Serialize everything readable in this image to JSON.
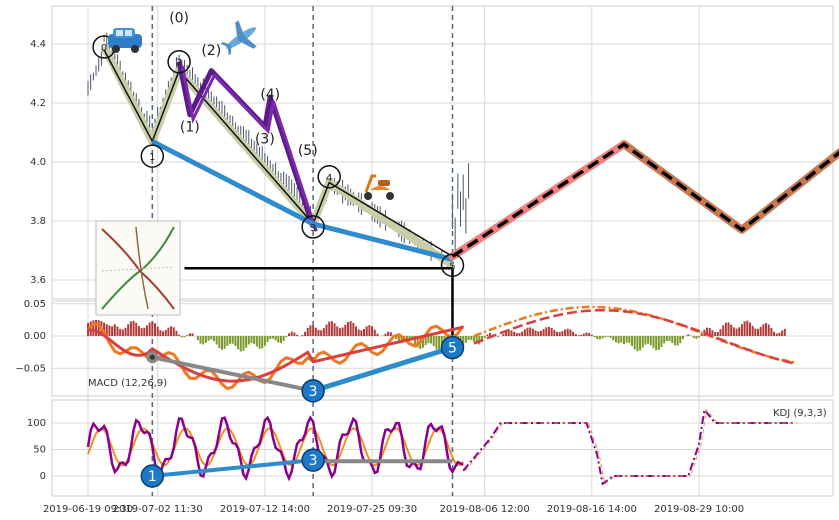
{
  "colors": {
    "candle": "#4a5568",
    "trend_blue": "#2e8bcc",
    "wave_purple": "#5b1a8a",
    "wave_olive": "#c8cfa8",
    "forecast_pink": "#f08080",
    "forecast_brown": "#c87850",
    "macd_red": "#d84040",
    "macd_orange": "#f07820",
    "kdj_purple": "#8b008b",
    "grid": "#d8d8d8",
    "vline": "#4a6a8a"
  },
  "icons": [
    "car-icon",
    "airplane-icon",
    "scooter-icon",
    "chart-thumbnail-icon"
  ],
  "chart_data": [
    {
      "type": "line",
      "panel": "price",
      "ylim": [
        3.52,
        4.53
      ],
      "yticks": [
        "4.4",
        "4.2",
        "4.0",
        "3.8",
        "3.6"
      ],
      "wave_labels": [
        {
          "text": "0",
          "x": 3,
          "y": 4.39
        },
        {
          "text": "1",
          "x": 12,
          "y": 4.02
        },
        {
          "text": "2",
          "x": 17,
          "y": 4.34
        },
        {
          "text": "3",
          "x": 42,
          "y": 3.78
        },
        {
          "text": "4",
          "x": 45,
          "y": 3.95
        },
        {
          "text": "5",
          "x": 68,
          "y": 3.65
        }
      ],
      "subwave_labels": [
        {
          "text": "(0)",
          "x": 17,
          "y": 4.49
        },
        {
          "text": "(1)",
          "x": 19,
          "y": 4.12
        },
        {
          "text": "(2)",
          "x": 23,
          "y": 4.38
        },
        {
          "text": "(3)",
          "x": 33,
          "y": 4.08
        },
        {
          "text": "(4)",
          "x": 34,
          "y": 4.23
        },
        {
          "text": "(5)",
          "x": 41,
          "y": 4.04
        }
      ],
      "purple_path": [
        [
          17,
          4.34
        ],
        [
          19,
          4.16
        ],
        [
          23,
          4.31
        ],
        [
          33,
          4.12
        ],
        [
          34,
          4.22
        ],
        [
          42,
          3.78
        ]
      ],
      "olive_path": [
        [
          3,
          4.39
        ],
        [
          12,
          4.07
        ],
        [
          17,
          4.31
        ],
        [
          42,
          3.79
        ],
        [
          45,
          3.93
        ],
        [
          68,
          3.65
        ]
      ],
      "black_path": [
        [
          3,
          4.38
        ],
        [
          12,
          4.07
        ],
        [
          17,
          4.31
        ],
        [
          42,
          3.79
        ],
        [
          45,
          3.93
        ],
        [
          68,
          3.68
        ]
      ],
      "blue_trend": [
        [
          12,
          4.07
        ],
        [
          42,
          3.79
        ],
        [
          68,
          3.67
        ]
      ],
      "forecast_pink": [
        [
          68,
          3.68
        ],
        [
          100,
          4.06
        ],
        [
          122,
          3.77
        ],
        [
          147,
          4.13
        ]
      ],
      "forecast_black_dashed": [
        [
          68,
          3.68
        ],
        [
          100,
          4.06
        ],
        [
          122,
          3.77
        ],
        [
          147,
          4.13
        ]
      ],
      "hline": [
        [
          18,
          3.64
        ],
        [
          68,
          3.64
        ]
      ],
      "dashed_vlines_x": [
        12,
        42,
        68
      ]
    },
    {
      "type": "bar",
      "panel": "macd",
      "label": "MACD (12,26,9)",
      "ylim": [
        -0.09,
        0.06
      ],
      "yticks": [
        "0.05",
        "0.00",
        "−0.05"
      ],
      "wave_labels": [
        {
          "text": "3",
          "x": 42,
          "y": -0.085
        },
        {
          "text": "5",
          "x": 68,
          "y": -0.018
        }
      ],
      "gray_line": [
        [
          12,
          -0.033
        ],
        [
          42,
          -0.085
        ]
      ],
      "blue_line": [
        [
          42,
          -0.085
        ],
        [
          68,
          -0.018
        ]
      ]
    },
    {
      "type": "line",
      "panel": "kdj",
      "label": "KDJ (9,3,3)",
      "ylim": [
        -25,
        135
      ],
      "yticks": [
        "100",
        "50",
        "0"
      ],
      "wave_labels": [
        {
          "text": "1",
          "x": 12,
          "y": 0
        },
        {
          "text": "3",
          "x": 42,
          "y": 30
        }
      ],
      "blue_line": [
        [
          12,
          0
        ],
        [
          42,
          30
        ]
      ],
      "gray_line": [
        [
          42,
          28
        ],
        [
          68,
          28
        ]
      ]
    }
  ],
  "xticks": [
    {
      "label": "2019-06-19 09:30",
      "x": 0
    },
    {
      "label": "2019-07-02 11:30",
      "x": 13
    },
    {
      "label": "2019-07-12 14:00",
      "x": 33
    },
    {
      "label": "2019-07-25 09:30",
      "x": 53
    },
    {
      "label": "2019-08-06 12:00",
      "x": 74
    },
    {
      "label": "2019-08-16 14:00",
      "x": 94
    },
    {
      "label": "2019-08-29 10:00",
      "x": 114
    }
  ]
}
